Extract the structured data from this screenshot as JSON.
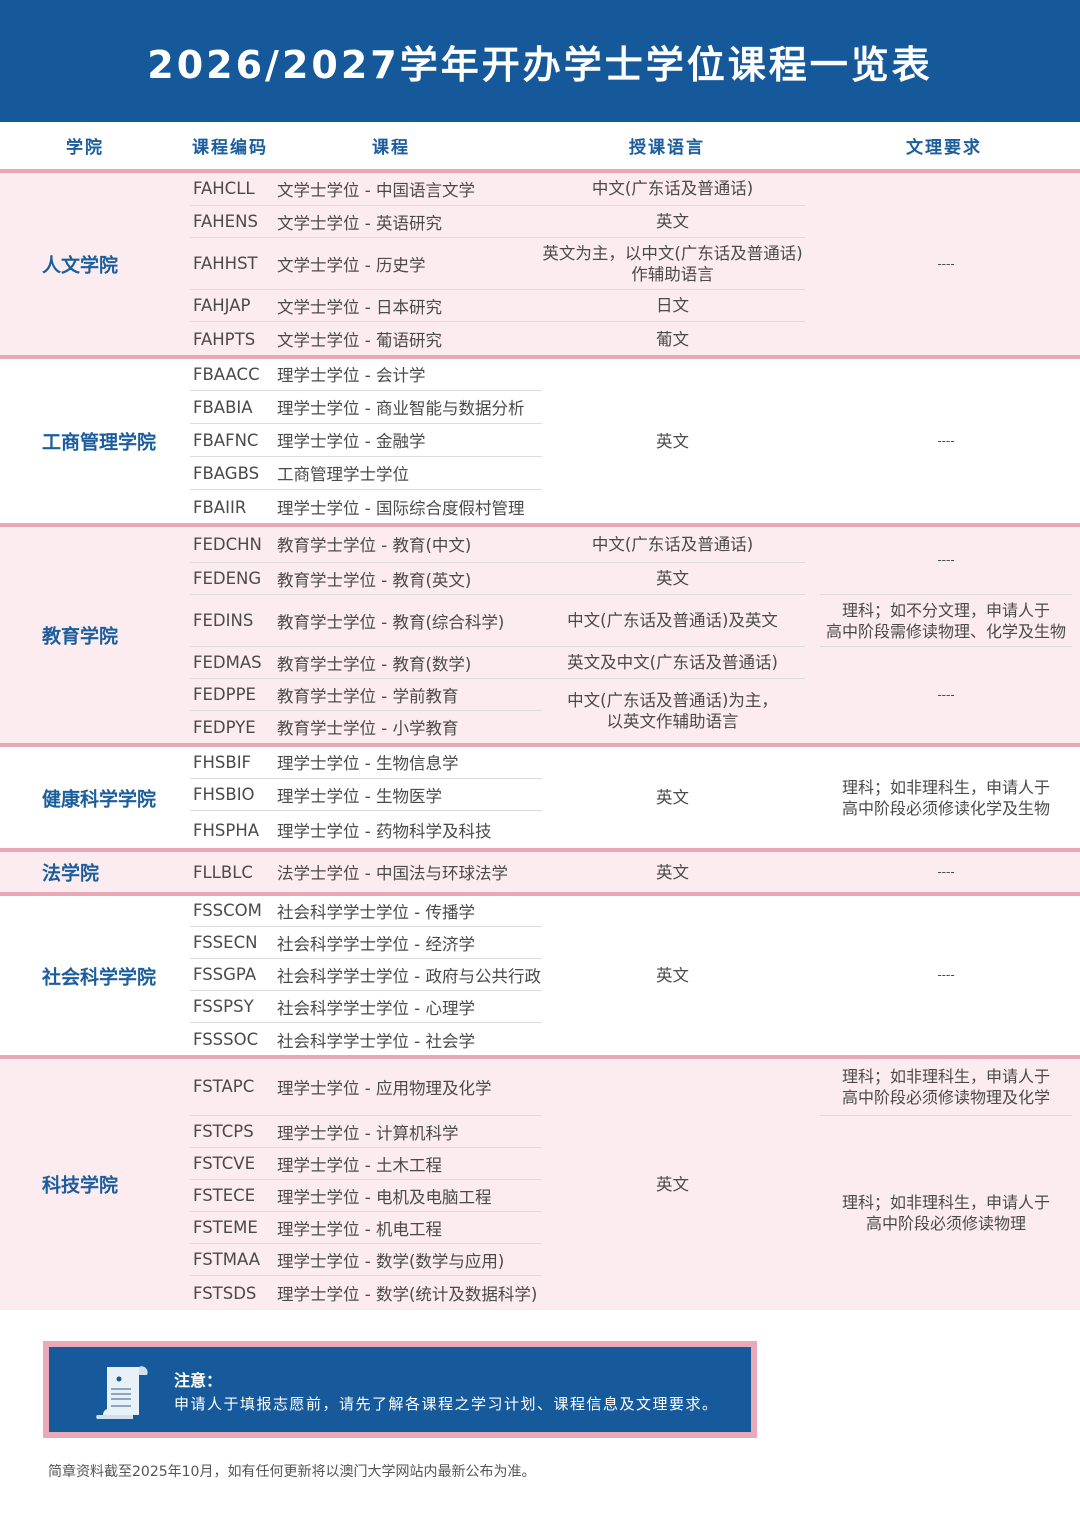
{
  "title": "2026/2027学年开办学士学位课程一览表",
  "columns": {
    "college": "学院",
    "code": "课程编码",
    "course": "课程",
    "language": "授课语言",
    "requirement": "文理要求"
  },
  "colors": {
    "brand_blue": "#15599b",
    "pink_bg": "#fcecef",
    "pink_line": "#e9a8b6"
  },
  "sections": [
    {
      "college": "人文学院",
      "courses": [
        {
          "code": "FAHCLL",
          "name": "文学士学位 - 中国语言文学"
        },
        {
          "code": "FAHENS",
          "name": "文学士学位 - 英语研究"
        },
        {
          "code": "FAHHST",
          "name": "文学士学位 - 历史学"
        },
        {
          "code": "FAHJAP",
          "name": "文学士学位 - 日本研究"
        },
        {
          "code": "FAHPTS",
          "name": "文学士学位 - 葡语研究"
        }
      ],
      "languages": [
        {
          "text": "中文(广东话及普通话)",
          "rows": 1
        },
        {
          "text": "英文",
          "rows": 1
        },
        {
          "text": "英文为主，以中文(广东话及普通话)\n作辅助语言",
          "rows": 1
        },
        {
          "text": "日文",
          "rows": 1
        },
        {
          "text": "葡文",
          "rows": 1
        }
      ],
      "requirements": [
        {
          "text": "----",
          "rows": 5
        }
      ]
    },
    {
      "college": "工商管理学院",
      "courses": [
        {
          "code": "FBAACC",
          "name": "理学士学位 - 会计学"
        },
        {
          "code": "FBABIA",
          "name": "理学士学位 - 商业智能与数据分析"
        },
        {
          "code": "FBAFNC",
          "name": "理学士学位 - 金融学"
        },
        {
          "code": "FBAGBS",
          "name": "工商管理学士学位"
        },
        {
          "code": "FBAIIR",
          "name": "理学士学位 - 国际综合度假村管理"
        }
      ],
      "languages": [
        {
          "text": "英文",
          "rows": 5
        }
      ],
      "requirements": [
        {
          "text": "----",
          "rows": 5
        }
      ]
    },
    {
      "college": "教育学院",
      "courses": [
        {
          "code": "FEDCHN",
          "name": "教育学士学位 - 教育(中文)"
        },
        {
          "code": "FEDENG",
          "name": "教育学士学位 - 教育(英文)"
        },
        {
          "code": "FEDINS",
          "name": "教育学士学位 - 教育(综合科学)"
        },
        {
          "code": "FEDMAS",
          "name": "教育学士学位 - 教育(数学)"
        },
        {
          "code": "FEDPPE",
          "name": "教育学士学位 - 学前教育"
        },
        {
          "code": "FEDPYE",
          "name": "教育学士学位 - 小学教育"
        }
      ],
      "languages": [
        {
          "text": "中文(广东话及普通话)",
          "rows": 1
        },
        {
          "text": "英文",
          "rows": 1
        },
        {
          "text": "中文(广东话及普通话)及英文",
          "rows": 1
        },
        {
          "text": "英文及中文(广东话及普通话)",
          "rows": 1
        },
        {
          "text": "中文(广东话及普通话)为主，\n以英文作辅助语言",
          "rows": 2
        }
      ],
      "requirements": [
        {
          "text": "----",
          "rows": 2
        },
        {
          "text": "理科；如不分文理，申请人于\n高中阶段需修读物理、化学及生物",
          "rows": 1
        },
        {
          "text": "----",
          "rows": 3
        }
      ]
    },
    {
      "college": "健康科学学院",
      "courses": [
        {
          "code": "FHSBIF",
          "name": "理学士学位 - 生物信息学"
        },
        {
          "code": "FHSBIO",
          "name": "理学士学位 - 生物医学"
        },
        {
          "code": "FHSPHA",
          "name": "理学士学位 - 药物科学及科技"
        }
      ],
      "languages": [
        {
          "text": "英文",
          "rows": 3
        }
      ],
      "requirements": [
        {
          "text": "理科；如非理科生，申请人于\n高中阶段必须修读化学及生物",
          "rows": 3
        }
      ]
    },
    {
      "college": "法学院",
      "courses": [
        {
          "code": "FLLBLC",
          "name": "法学士学位 - 中国法与环球法学"
        }
      ],
      "languages": [
        {
          "text": "英文",
          "rows": 1
        }
      ],
      "requirements": [
        {
          "text": "----",
          "rows": 1
        }
      ]
    },
    {
      "college": "社会科学学院",
      "courses": [
        {
          "code": "FSSCOM",
          "name": "社会科学学士学位 - 传播学"
        },
        {
          "code": "FSSECN",
          "name": "社会科学学士学位 - 经济学"
        },
        {
          "code": "FSSGPA",
          "name": "社会科学学士学位 - 政府与公共行政"
        },
        {
          "code": "FSSPSY",
          "name": "社会科学学士学位 - 心理学"
        },
        {
          "code": "FSSSOC",
          "name": "社会科学学士学位 - 社会学"
        }
      ],
      "languages": [
        {
          "text": "英文",
          "rows": 5
        }
      ],
      "requirements": [
        {
          "text": "----",
          "rows": 5
        }
      ]
    },
    {
      "college": "科技学院",
      "courses": [
        {
          "code": "FSTAPC",
          "name": "理学士学位 - 应用物理及化学"
        },
        {
          "code": "FSTCPS",
          "name": "理学士学位 - 计算机科学"
        },
        {
          "code": "FSTCVE",
          "name": "理学士学位 - 土木工程"
        },
        {
          "code": "FSTECE",
          "name": "理学士学位 - 电机及电脑工程"
        },
        {
          "code": "FSTEME",
          "name": "理学士学位 - 机电工程"
        },
        {
          "code": "FSTMAA",
          "name": "理学士学位 - 数学(数学与应用)"
        },
        {
          "code": "FSTSDS",
          "name": "理学士学位 - 数学(统计及数据科学)"
        }
      ],
      "languages": [
        {
          "text": "英文",
          "rows": 7
        }
      ],
      "requirements": [
        {
          "text": "理科；如非理科生，申请人于\n高中阶段必须修读物理及化学",
          "rows": 1
        },
        {
          "text": "理科；如非理科生，申请人于\n高中阶段必须修读物理",
          "rows": 6
        }
      ]
    }
  ],
  "notice": {
    "icon": "scroll-document-icon",
    "title": "注意：",
    "text": "申请人于填报志愿前，请先了解各课程之学习计划、课程信息及文理要求。"
  },
  "footnote": "简章资料截至2025年10月，如有任何更新将以澳门大学网站内最新公布为准。"
}
